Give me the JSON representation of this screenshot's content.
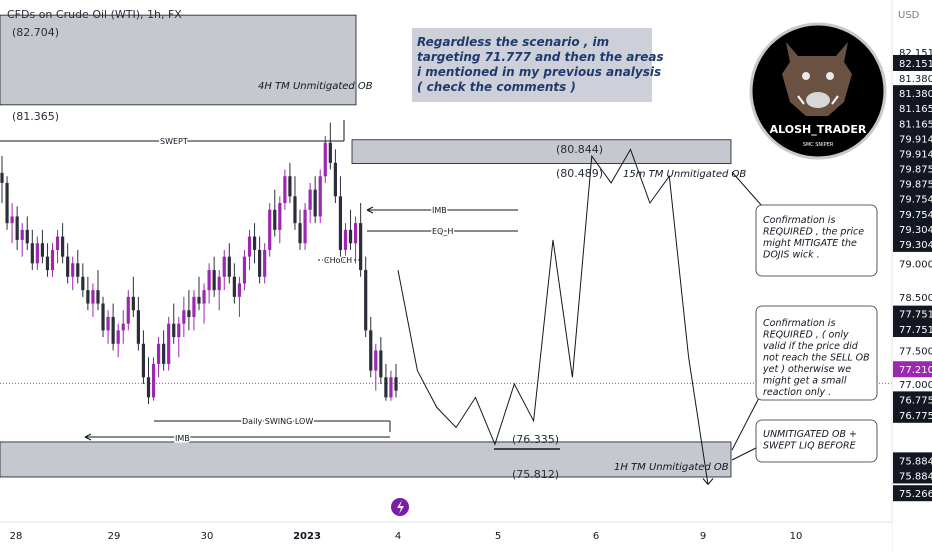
{
  "header": {
    "symbol_title": "CFDs on Crude Oil (WTI), 1h, FX",
    "currency": "USD"
  },
  "logo": {
    "name": "ALOSH_TRADER",
    "tagline": "SMC SNIPER"
  },
  "note_box": "Regardless the scenario , im targeting 71.777 and then the areas i mentioned in my previous analysis  ( check the comments )",
  "zones": {
    "ob_4h": {
      "label": "4H TM Unmitigated OB",
      "top_label": "(82.704)",
      "bottom_label": "(81.365)",
      "top": 82.704,
      "bottom": 81.365
    },
    "ob_15m": {
      "label": "15m TM Unmitigated OB",
      "top_label": "(80.844)",
      "bottom_label": "(80.489)",
      "top": 80.844,
      "bottom": 80.489
    },
    "ob_1h": {
      "label": "1H TM Unmitigated OB",
      "top_label": "(76.335)",
      "bottom_label": "(75.812)",
      "top": 76.335,
      "bottom": 75.812
    }
  },
  "annotations": {
    "swept": "SWEPT",
    "imb_upper": "IMB",
    "eq_h": "EQ_H",
    "choch": "CHoCH",
    "daily_swing_low": "Daily SWING LOW",
    "imb_lower": "IMB"
  },
  "callouts": {
    "c1": "Confirmation is REQUIRED , the price might MITIGATE the DOJIS wick .",
    "c2": "Confirmation is REQUIRED , ( only valid if the price did not reach the SELL OB yet ) otherwise we might get a small reaction only .",
    "c3": "UNMITIGATED OB + SWEPT LIQ BEFORE"
  },
  "price_axis": {
    "labels": [
      {
        "text": "82.151",
        "value": 82.151
      },
      {
        "text": "82.151",
        "value": 81.99,
        "tag": true
      },
      {
        "text": "81.380",
        "value": 81.765
      },
      {
        "text": "81.380",
        "value": 81.54,
        "tag": true
      },
      {
        "text": "81.165",
        "value": 81.315,
        "tag": true
      },
      {
        "text": "81.165",
        "value": 81.09,
        "tag": true
      },
      {
        "text": "79.914",
        "value": 80.865,
        "tag": true
      },
      {
        "text": "79.914",
        "value": 80.64,
        "tag": true
      },
      {
        "text": "79.875",
        "value": 80.415,
        "tag": true
      },
      {
        "text": "79.875",
        "value": 80.19,
        "tag": true
      },
      {
        "text": "79.754",
        "value": 79.965,
        "tag": true
      },
      {
        "text": "79.754",
        "value": 79.74,
        "tag": true
      },
      {
        "text": "79.304",
        "value": 79.515,
        "tag": true
      },
      {
        "text": "79.304",
        "value": 79.29,
        "tag": true
      },
      {
        "text": "79.000",
        "value": 79.0
      },
      {
        "text": "78.500",
        "value": 78.5
      },
      {
        "text": "77.751",
        "value": 78.25,
        "tag": true
      },
      {
        "text": "77.751",
        "value": 78.02,
        "tag": true
      },
      {
        "text": "77.500",
        "value": 77.7
      },
      {
        "text": "77.210",
        "value": 77.42,
        "tag": true,
        "current": true
      },
      {
        "text": "77.000",
        "value": 77.2
      },
      {
        "text": "76.775",
        "value": 76.97,
        "tag": true
      },
      {
        "text": "76.775",
        "value": 76.74,
        "tag": true
      },
      {
        "text": "75.884",
        "value": 76.06,
        "tag": true
      },
      {
        "text": "75.884",
        "value": 75.835,
        "tag": true
      },
      {
        "text": "75.266",
        "value": 75.57,
        "tag": true
      }
    ]
  },
  "time_axis": [
    "28",
    "29",
    "30",
    "2023",
    "4",
    "5",
    "6",
    "9",
    "10"
  ],
  "colors": {
    "bull": "#9c27b0",
    "bear": "#2a2e39",
    "current_price": "#9c27b0",
    "zone_fill": "#b2b5be",
    "tag_bg": "#131722"
  },
  "chart_data": {
    "type": "candlestick",
    "title": "CFDs on Crude Oil (WTI), 1h, FX",
    "ylabel": "USD",
    "x_ticks": [
      "28",
      "29",
      "30",
      "2023",
      "4",
      "5",
      "6",
      "9",
      "10"
    ],
    "ylim": [
      75.2,
      82.9
    ],
    "current_price": 77.21,
    "candles": [
      {
        "o": 80.35,
        "h": 80.6,
        "l": 79.9,
        "c": 80.2
      },
      {
        "o": 80.2,
        "h": 80.3,
        "l": 79.5,
        "c": 79.6
      },
      {
        "o": 79.6,
        "h": 79.9,
        "l": 79.3,
        "c": 79.7
      },
      {
        "o": 79.7,
        "h": 79.85,
        "l": 79.2,
        "c": 79.35
      },
      {
        "o": 79.35,
        "h": 79.6,
        "l": 79.1,
        "c": 79.5
      },
      {
        "o": 79.5,
        "h": 79.7,
        "l": 79.2,
        "c": 79.3
      },
      {
        "o": 79.3,
        "h": 79.5,
        "l": 78.9,
        "c": 79.0
      },
      {
        "o": 79.0,
        "h": 79.4,
        "l": 78.9,
        "c": 79.3
      },
      {
        "o": 79.3,
        "h": 79.5,
        "l": 79.0,
        "c": 79.1
      },
      {
        "o": 79.1,
        "h": 79.3,
        "l": 78.8,
        "c": 78.9
      },
      {
        "o": 78.9,
        "h": 79.3,
        "l": 78.8,
        "c": 79.2
      },
      {
        "o": 79.2,
        "h": 79.5,
        "l": 79.0,
        "c": 79.4
      },
      {
        "o": 79.4,
        "h": 79.6,
        "l": 79.0,
        "c": 79.1
      },
      {
        "o": 79.1,
        "h": 79.3,
        "l": 78.7,
        "c": 78.8
      },
      {
        "o": 78.8,
        "h": 79.1,
        "l": 78.6,
        "c": 79.0
      },
      {
        "o": 79.0,
        "h": 79.2,
        "l": 78.7,
        "c": 78.8
      },
      {
        "o": 78.8,
        "h": 79.0,
        "l": 78.5,
        "c": 78.6
      },
      {
        "o": 78.6,
        "h": 78.8,
        "l": 78.3,
        "c": 78.4
      },
      {
        "o": 78.4,
        "h": 78.7,
        "l": 78.2,
        "c": 78.6
      },
      {
        "o": 78.6,
        "h": 78.9,
        "l": 78.3,
        "c": 78.4
      },
      {
        "o": 78.4,
        "h": 78.5,
        "l": 77.9,
        "c": 78.0
      },
      {
        "o": 78.0,
        "h": 78.3,
        "l": 77.8,
        "c": 78.2
      },
      {
        "o": 78.2,
        "h": 78.4,
        "l": 77.7,
        "c": 77.8
      },
      {
        "o": 77.8,
        "h": 78.1,
        "l": 77.6,
        "c": 78.0
      },
      {
        "o": 78.0,
        "h": 78.3,
        "l": 77.8,
        "c": 78.1
      },
      {
        "o": 78.1,
        "h": 78.6,
        "l": 78.0,
        "c": 78.5
      },
      {
        "o": 78.5,
        "h": 78.8,
        "l": 78.2,
        "c": 78.3
      },
      {
        "o": 78.3,
        "h": 78.5,
        "l": 77.7,
        "c": 77.8
      },
      {
        "o": 77.8,
        "h": 78.0,
        "l": 77.2,
        "c": 77.3
      },
      {
        "o": 77.3,
        "h": 77.6,
        "l": 76.9,
        "c": 77.0
      },
      {
        "o": 77.0,
        "h": 77.6,
        "l": 76.95,
        "c": 77.5
      },
      {
        "o": 77.5,
        "h": 77.9,
        "l": 77.3,
        "c": 77.8
      },
      {
        "o": 77.8,
        "h": 78.0,
        "l": 77.4,
        "c": 77.5
      },
      {
        "o": 77.5,
        "h": 78.2,
        "l": 77.4,
        "c": 78.1
      },
      {
        "o": 78.1,
        "h": 78.4,
        "l": 77.8,
        "c": 77.9
      },
      {
        "o": 77.9,
        "h": 78.2,
        "l": 77.6,
        "c": 78.1
      },
      {
        "o": 78.1,
        "h": 78.5,
        "l": 77.9,
        "c": 78.3
      },
      {
        "o": 78.3,
        "h": 78.6,
        "l": 78.0,
        "c": 78.2
      },
      {
        "o": 78.2,
        "h": 78.6,
        "l": 78.0,
        "c": 78.5
      },
      {
        "o": 78.5,
        "h": 78.8,
        "l": 78.3,
        "c": 78.4
      },
      {
        "o": 78.4,
        "h": 78.7,
        "l": 78.1,
        "c": 78.6
      },
      {
        "o": 78.6,
        "h": 79.0,
        "l": 78.4,
        "c": 78.9
      },
      {
        "o": 78.9,
        "h": 79.1,
        "l": 78.5,
        "c": 78.6
      },
      {
        "o": 78.6,
        "h": 78.9,
        "l": 78.3,
        "c": 78.8
      },
      {
        "o": 78.8,
        "h": 79.2,
        "l": 78.6,
        "c": 79.1
      },
      {
        "o": 79.1,
        "h": 79.3,
        "l": 78.7,
        "c": 78.8
      },
      {
        "o": 78.8,
        "h": 79.0,
        "l": 78.4,
        "c": 78.5
      },
      {
        "o": 78.5,
        "h": 78.8,
        "l": 78.2,
        "c": 78.7
      },
      {
        "o": 78.7,
        "h": 79.2,
        "l": 78.6,
        "c": 79.1
      },
      {
        "o": 79.1,
        "h": 79.5,
        "l": 78.9,
        "c": 79.4
      },
      {
        "o": 79.4,
        "h": 79.6,
        "l": 79.0,
        "c": 79.2
      },
      {
        "o": 79.2,
        "h": 79.4,
        "l": 78.7,
        "c": 78.8
      },
      {
        "o": 78.8,
        "h": 79.3,
        "l": 78.7,
        "c": 79.2
      },
      {
        "o": 79.2,
        "h": 79.9,
        "l": 79.1,
        "c": 79.8
      },
      {
        "o": 79.8,
        "h": 80.1,
        "l": 79.4,
        "c": 79.5
      },
      {
        "o": 79.5,
        "h": 80.0,
        "l": 79.3,
        "c": 79.9
      },
      {
        "o": 79.9,
        "h": 80.4,
        "l": 79.8,
        "c": 80.3
      },
      {
        "o": 80.3,
        "h": 80.5,
        "l": 79.9,
        "c": 80.0
      },
      {
        "o": 80.0,
        "h": 80.3,
        "l": 79.5,
        "c": 79.6
      },
      {
        "o": 79.6,
        "h": 79.8,
        "l": 79.2,
        "c": 79.3
      },
      {
        "o": 79.3,
        "h": 79.9,
        "l": 79.2,
        "c": 79.8
      },
      {
        "o": 79.8,
        "h": 80.2,
        "l": 79.6,
        "c": 80.1
      },
      {
        "o": 80.1,
        "h": 80.3,
        "l": 79.6,
        "c": 79.7
      },
      {
        "o": 79.7,
        "h": 80.4,
        "l": 79.6,
        "c": 80.3
      },
      {
        "o": 80.3,
        "h": 80.9,
        "l": 80.2,
        "c": 80.8
      },
      {
        "o": 80.8,
        "h": 81.1,
        "l": 80.4,
        "c": 80.5
      },
      {
        "o": 80.5,
        "h": 80.7,
        "l": 79.9,
        "c": 80.0
      },
      {
        "o": 80.0,
        "h": 80.3,
        "l": 79.1,
        "c": 79.2
      },
      {
        "o": 79.2,
        "h": 79.6,
        "l": 79.0,
        "c": 79.5
      },
      {
        "o": 79.5,
        "h": 79.8,
        "l": 79.2,
        "c": 79.3
      },
      {
        "o": 79.3,
        "h": 79.7,
        "l": 79.0,
        "c": 79.6
      },
      {
        "o": 79.6,
        "h": 79.9,
        "l": 78.8,
        "c": 78.9
      },
      {
        "o": 78.9,
        "h": 79.1,
        "l": 77.9,
        "c": 78.0
      },
      {
        "o": 78.0,
        "h": 78.2,
        "l": 77.3,
        "c": 77.4
      },
      {
        "o": 77.4,
        "h": 77.8,
        "l": 77.1,
        "c": 77.7
      },
      {
        "o": 77.7,
        "h": 77.9,
        "l": 77.2,
        "c": 77.3
      },
      {
        "o": 77.3,
        "h": 77.5,
        "l": 76.95,
        "c": 77.0
      },
      {
        "o": 77.0,
        "h": 77.4,
        "l": 76.95,
        "c": 77.3
      },
      {
        "o": 77.3,
        "h": 77.5,
        "l": 77.0,
        "c": 77.1
      }
    ],
    "projection_path": [
      78.9,
      77.4,
      76.85,
      76.55,
      77.0,
      76.3,
      77.2,
      76.65,
      79.35,
      77.3,
      80.6,
      80.2,
      80.7,
      79.9,
      80.3,
      77.6,
      75.7
    ]
  }
}
